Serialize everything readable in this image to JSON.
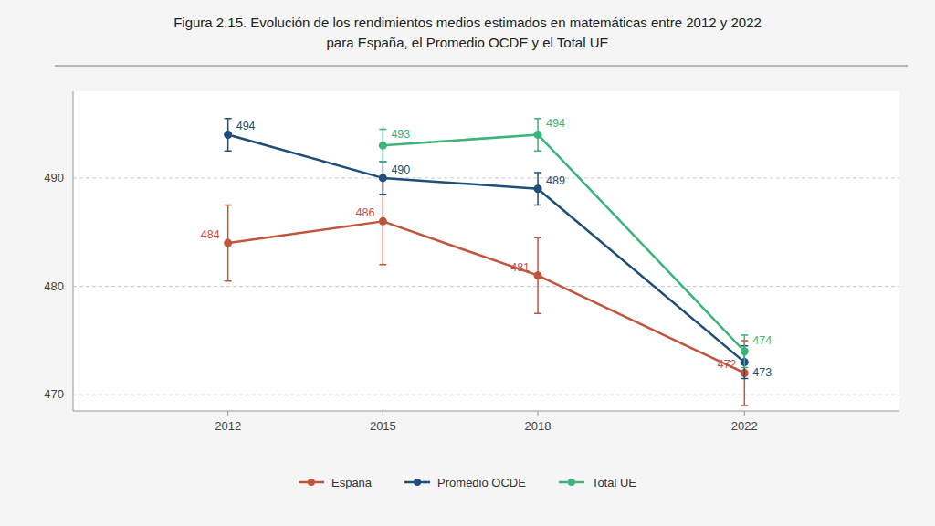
{
  "chart_data": {
    "type": "line",
    "title": "Figura 2.15. Evolución de los rendimientos medios estimados en matemáticas entre 2012 y 2022",
    "subtitle": "para España, el Promedio OCDE y el Total UE",
    "x": [
      2012,
      2015,
      2018,
      2022
    ],
    "series": [
      {
        "name": "España",
        "color": "#C0543C",
        "values": [
          484,
          486,
          481,
          472
        ],
        "errors": [
          3.5,
          4.0,
          3.5,
          3.0
        ]
      },
      {
        "name": "Promedio OCDE",
        "color": "#1F4E79",
        "values": [
          494,
          490,
          489,
          473
        ],
        "errors": [
          1.5,
          1.5,
          1.5,
          1.5
        ]
      },
      {
        "name": "Total UE",
        "color": "#3CB37A",
        "values": [
          null,
          493,
          494,
          474
        ],
        "errors": [
          null,
          1.5,
          1.5,
          1.5
        ]
      }
    ],
    "xlim": [
      2009,
      2025
    ],
    "xticks": [
      2012,
      2015,
      2018,
      2022
    ],
    "ylim": [
      468.5,
      498
    ],
    "yticks": [
      470,
      480,
      490
    ],
    "grid": true,
    "legend": "bottom",
    "data_labels": true,
    "marker": "circle",
    "line_style": "solid"
  }
}
